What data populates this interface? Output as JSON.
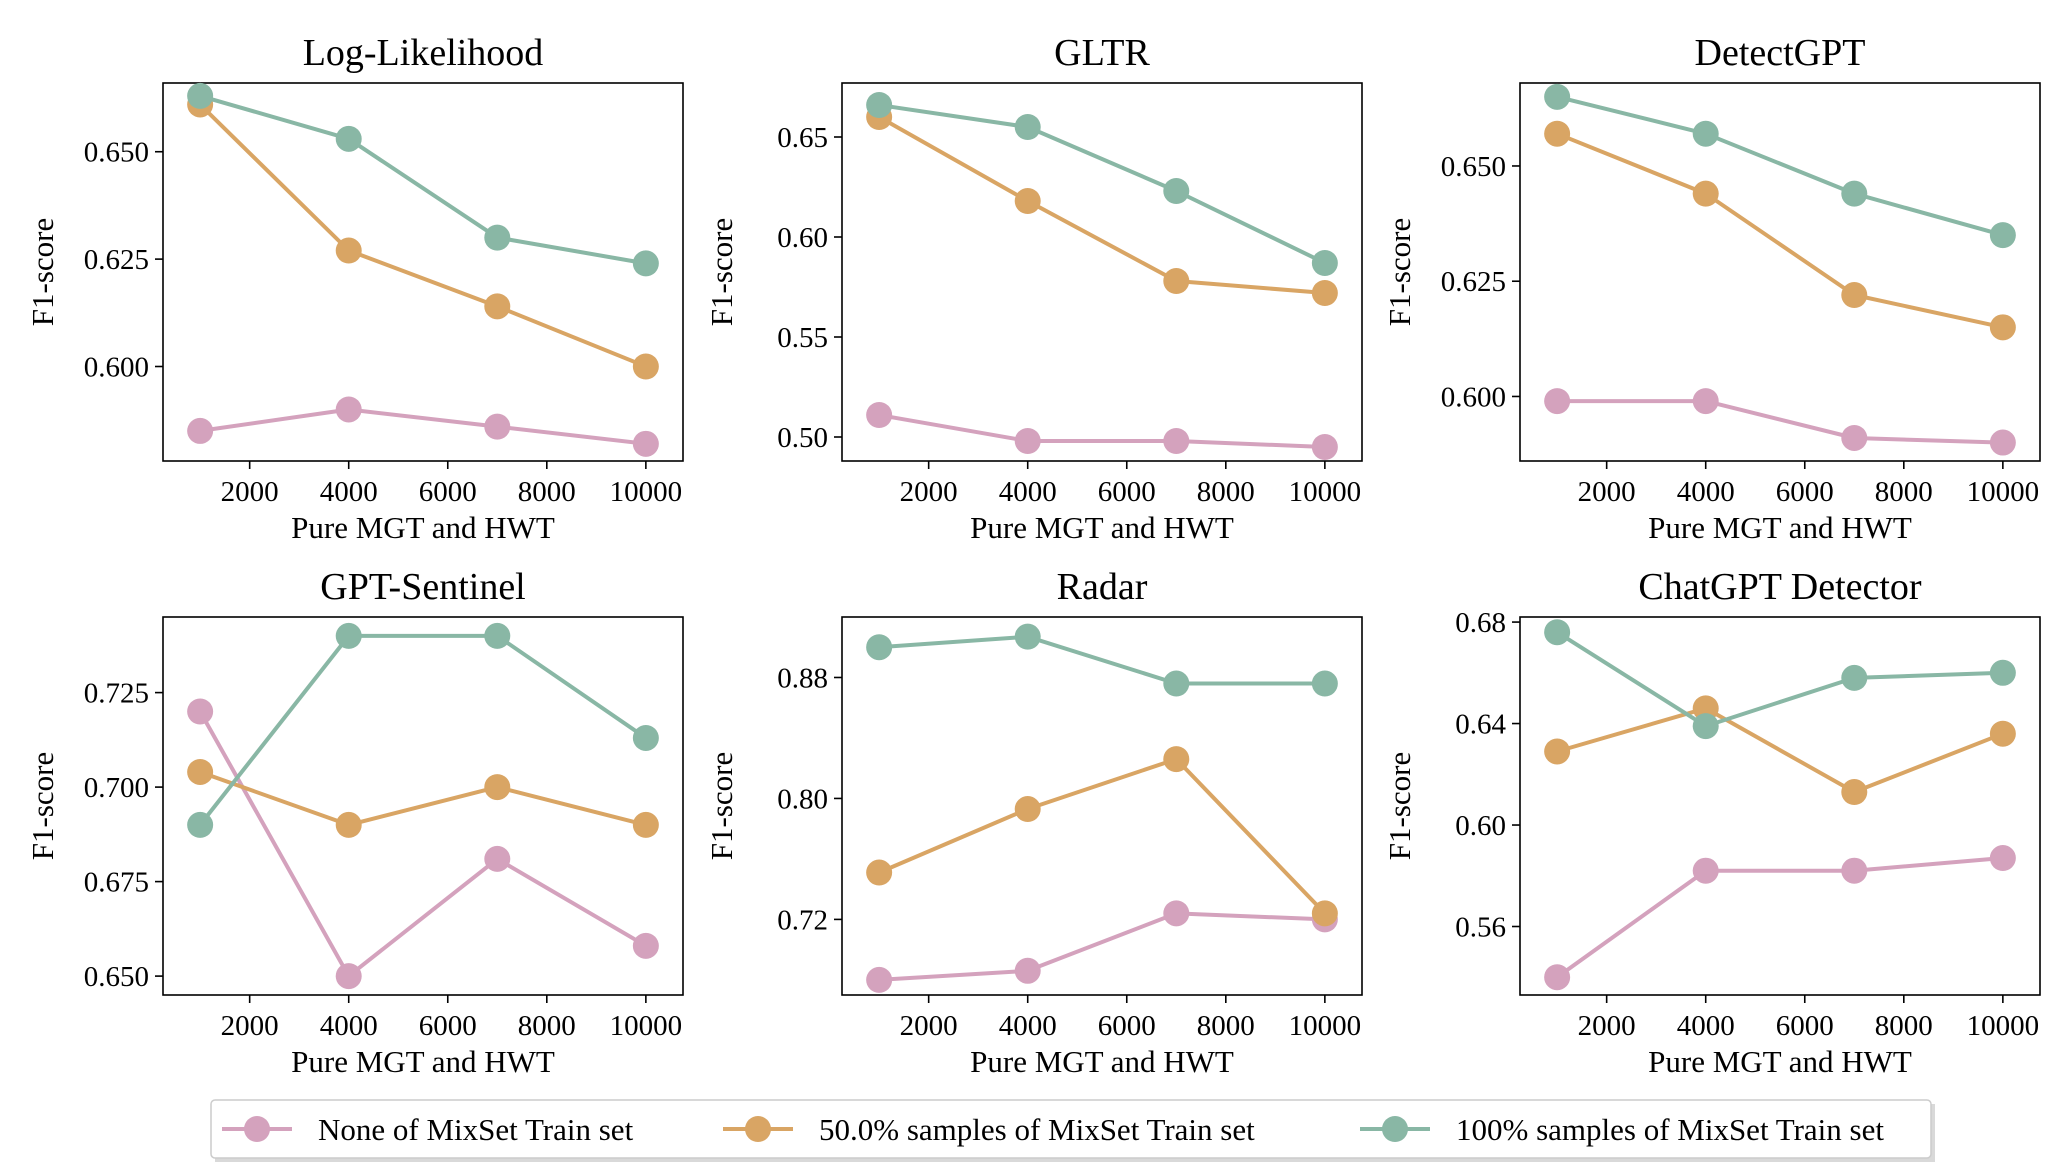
{
  "colors": {
    "none": "#d4a2bd",
    "half": "#d9a564",
    "full": "#89b7a5",
    "axis": "#000000",
    "legend_border": "#cccccc"
  },
  "legend": {
    "items": [
      {
        "key": "none",
        "label": "None of MixSet Train set"
      },
      {
        "key": "half",
        "label": "50.0% samples of MixSet Train set"
      },
      {
        "key": "full",
        "label": "100% samples of MixSet Train set"
      }
    ]
  },
  "chart_data": [
    {
      "type": "line",
      "title": "Log-Likelihood",
      "xlabel": "Pure MGT and HWT",
      "ylabel": "F1-score",
      "x": [
        1000,
        4000,
        7000,
        10000
      ],
      "xlim": [
        250,
        10750
      ],
      "xticks": [
        2000,
        4000,
        6000,
        8000,
        10000
      ],
      "ylim": [
        0.578,
        0.666
      ],
      "yticks": [
        0.6,
        0.625,
        0.65
      ],
      "ytick_labels": [
        "0.600",
        "0.625",
        "0.650"
      ],
      "series": [
        {
          "key": "none",
          "name": "None of MixSet Train set",
          "values": [
            0.585,
            0.59,
            0.586,
            0.582
          ]
        },
        {
          "key": "half",
          "name": "50.0% samples of MixSet Train set",
          "values": [
            0.661,
            0.627,
            0.614,
            0.6
          ]
        },
        {
          "key": "full",
          "name": "100% samples of MixSet Train set",
          "values": [
            0.663,
            0.653,
            0.63,
            0.624
          ]
        }
      ]
    },
    {
      "type": "line",
      "title": "GLTR",
      "xlabel": "Pure MGT and HWT",
      "ylabel": "F1-score",
      "x": [
        1000,
        4000,
        7000,
        10000
      ],
      "xlim": [
        250,
        10750
      ],
      "xticks": [
        2000,
        4000,
        6000,
        8000,
        10000
      ],
      "ylim": [
        0.488,
        0.677
      ],
      "yticks": [
        0.5,
        0.55,
        0.6,
        0.65
      ],
      "ytick_labels": [
        "0.50",
        "0.55",
        "0.60",
        "0.65"
      ],
      "series": [
        {
          "key": "none",
          "name": "None of MixSet Train set",
          "values": [
            0.511,
            0.498,
            0.498,
            0.495
          ]
        },
        {
          "key": "half",
          "name": "50.0% samples of MixSet Train set",
          "values": [
            0.66,
            0.618,
            0.578,
            0.572
          ]
        },
        {
          "key": "full",
          "name": "100% samples of MixSet Train set",
          "values": [
            0.666,
            0.655,
            0.623,
            0.587
          ]
        }
      ]
    },
    {
      "type": "line",
      "title": "DetectGPT",
      "xlabel": "Pure MGT and HWT",
      "ylabel": "F1-score",
      "x": [
        1000,
        4000,
        7000,
        10000
      ],
      "xlim": [
        250,
        10750
      ],
      "xticks": [
        2000,
        4000,
        6000,
        8000,
        10000
      ],
      "ylim": [
        0.586,
        0.668
      ],
      "yticks": [
        0.6,
        0.625,
        0.65
      ],
      "ytick_labels": [
        "0.600",
        "0.625",
        "0.650"
      ],
      "series": [
        {
          "key": "none",
          "name": "None of MixSet Train set",
          "values": [
            0.599,
            0.599,
            0.591,
            0.59
          ]
        },
        {
          "key": "half",
          "name": "50.0% samples of MixSet Train set",
          "values": [
            0.657,
            0.644,
            0.622,
            0.615
          ]
        },
        {
          "key": "full",
          "name": "100% samples of MixSet Train set",
          "values": [
            0.665,
            0.657,
            0.644,
            0.635
          ]
        }
      ]
    },
    {
      "type": "line",
      "title": "GPT-Sentinel",
      "xlabel": "Pure MGT and HWT",
      "ylabel": "F1-score",
      "x": [
        1000,
        4000,
        7000,
        10000
      ],
      "xlim": [
        250,
        10750
      ],
      "xticks": [
        2000,
        4000,
        6000,
        8000,
        10000
      ],
      "ylim": [
        0.645,
        0.745
      ],
      "yticks": [
        0.65,
        0.675,
        0.7,
        0.725
      ],
      "ytick_labels": [
        "0.650",
        "0.675",
        "0.700",
        "0.725"
      ],
      "series": [
        {
          "key": "none",
          "name": "None of MixSet Train set",
          "values": [
            0.72,
            0.65,
            0.681,
            0.658
          ]
        },
        {
          "key": "half",
          "name": "50.0% samples of MixSet Train set",
          "values": [
            0.704,
            0.69,
            0.7,
            0.69
          ]
        },
        {
          "key": "full",
          "name": "100% samples of MixSet Train set",
          "values": [
            0.69,
            0.74,
            0.74,
            0.713
          ]
        }
      ]
    },
    {
      "type": "line",
      "title": "Radar",
      "xlabel": "Pure MGT and HWT",
      "ylabel": "F1-score",
      "x": [
        1000,
        4000,
        7000,
        10000
      ],
      "xlim": [
        250,
        10750
      ],
      "xticks": [
        2000,
        4000,
        6000,
        8000,
        10000
      ],
      "ylim": [
        0.67,
        0.92
      ],
      "yticks": [
        0.72,
        0.8,
        0.88
      ],
      "ytick_labels": [
        "0.72",
        "0.80",
        "0.88"
      ],
      "series": [
        {
          "key": "none",
          "name": "None of MixSet Train set",
          "values": [
            0.68,
            0.686,
            0.724,
            0.72
          ]
        },
        {
          "key": "half",
          "name": "50.0% samples of MixSet Train set",
          "values": [
            0.751,
            0.793,
            0.826,
            0.724
          ]
        },
        {
          "key": "full",
          "name": "100% samples of MixSet Train set",
          "values": [
            0.9,
            0.907,
            0.876,
            0.876
          ]
        }
      ]
    },
    {
      "type": "line",
      "title": "ChatGPT Detector",
      "xlabel": "Pure MGT and HWT",
      "ylabel": "F1-score",
      "x": [
        1000,
        4000,
        7000,
        10000
      ],
      "xlim": [
        250,
        10750
      ],
      "xticks": [
        2000,
        4000,
        6000,
        8000,
        10000
      ],
      "ylim": [
        0.533,
        0.682
      ],
      "yticks": [
        0.56,
        0.6,
        0.64,
        0.68
      ],
      "ytick_labels": [
        "0.56",
        "0.60",
        "0.64",
        "0.68"
      ],
      "series": [
        {
          "key": "none",
          "name": "None of MixSet Train set",
          "values": [
            0.54,
            0.582,
            0.582,
            0.587
          ]
        },
        {
          "key": "half",
          "name": "50.0% samples of MixSet Train set",
          "values": [
            0.629,
            0.646,
            0.613,
            0.636
          ]
        },
        {
          "key": "full",
          "name": "100% samples of MixSet Train set",
          "values": [
            0.676,
            0.639,
            0.658,
            0.66
          ]
        }
      ]
    }
  ]
}
